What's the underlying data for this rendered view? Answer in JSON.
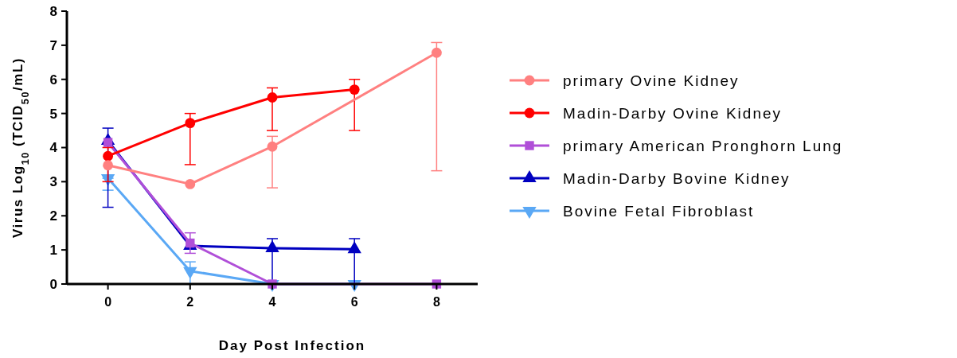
{
  "chart_data": {
    "type": "line",
    "xlabel": "Day Post Infection",
    "ylabel": "Virus Log$_{10}$ (TCID$_{50}$/mL)",
    "x": [
      0,
      2,
      4,
      6,
      8
    ],
    "xlim": [
      -1,
      9
    ],
    "xticks": [
      0,
      2,
      4,
      6,
      8
    ],
    "ylim": [
      0,
      8
    ],
    "yticks": [
      0,
      1,
      2,
      3,
      4,
      5,
      6,
      7,
      8
    ],
    "grid": false,
    "legend": "right",
    "series": [
      {
        "name": "primary Ovine Kidney",
        "color": "#ff8080",
        "marker": "circle",
        "values": [
          3.48,
          2.93,
          4.03,
          null,
          6.78
        ],
        "errors": [
          null,
          null,
          [
            2.82,
            4.33
          ],
          null,
          [
            3.32,
            7.08
          ]
        ]
      },
      {
        "name": "Madin-Darby Ovine Kidney",
        "color": "#ff0000",
        "marker": "circle",
        "values": [
          3.75,
          4.72,
          5.47,
          5.7,
          null
        ],
        "errors": [
          [
            3.0,
            4.0
          ],
          [
            3.5,
            5.0
          ],
          [
            4.5,
            5.75
          ],
          [
            4.5,
            6.0
          ],
          null
        ]
      },
      {
        "name": "primary American Pronghorn Lung",
        "color": "#b04fd8",
        "marker": "square",
        "values": [
          4.15,
          1.2,
          0,
          null,
          0
        ],
        "errors": [
          null,
          [
            0.9,
            1.5
          ],
          null,
          null,
          null
        ]
      },
      {
        "name": "Madin-Darby Bovine Kidney",
        "color": "#0000c0",
        "marker": "triangle",
        "values": [
          4.2,
          1.12,
          1.05,
          1.02,
          null
        ],
        "errors": [
          [
            2.25,
            4.57
          ],
          null,
          [
            0,
            1.33
          ],
          [
            0,
            1.33
          ],
          null
        ]
      },
      {
        "name": "Bovine Fetal Fibroblast",
        "color": "#5aa8f5",
        "marker": "triangle-down",
        "values": [
          3.1,
          0.38,
          0,
          0,
          null
        ],
        "errors": [
          [
            2.75,
            3.1
          ],
          [
            0,
            0.65
          ],
          null,
          null,
          null
        ]
      }
    ]
  }
}
